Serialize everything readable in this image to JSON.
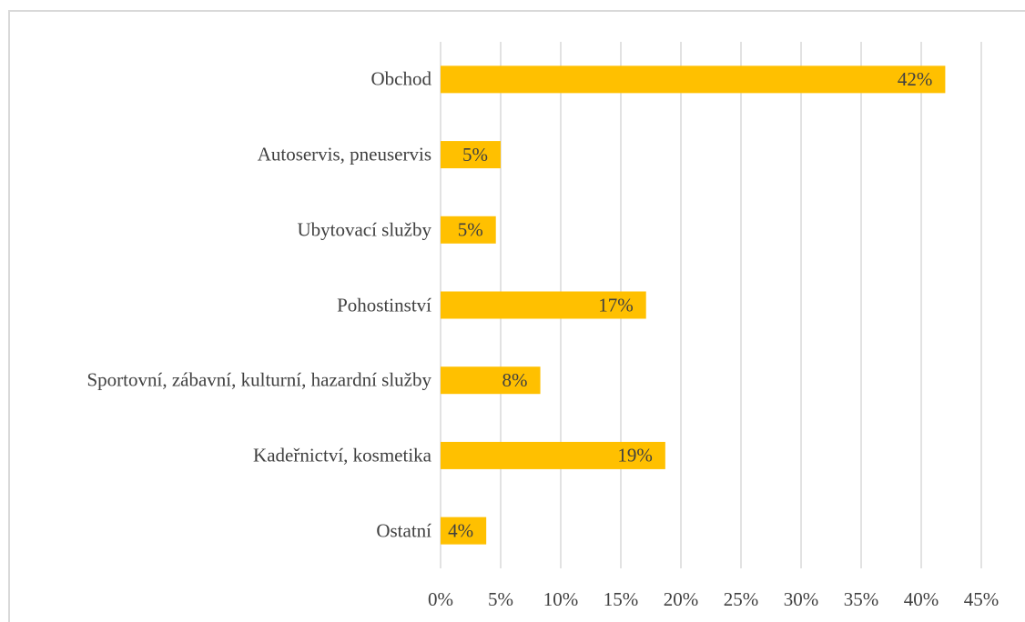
{
  "chart_data": {
    "type": "bar",
    "orientation": "horizontal",
    "categories": [
      "Obchod",
      "Autoservis, pneuservis",
      "Ubytovací služby",
      "Pohostinství",
      "Sportovní, zábavní, kulturní, hazardní služby",
      "Kadeřnictví, kosmetika",
      "Ostatní"
    ],
    "values": [
      42,
      5,
      4.6,
      17.1,
      8.3,
      18.7,
      3.8
    ],
    "value_labels": [
      "42%",
      "5%",
      "5%",
      "17%",
      "8%",
      "19%",
      "4%"
    ],
    "color": "#ffc000",
    "xlim": [
      0,
      45
    ],
    "xticks": [
      {
        "value": 0,
        "label": "0%"
      },
      {
        "value": 5,
        "label": "5%"
      },
      {
        "value": 10,
        "label": "10%"
      },
      {
        "value": 15,
        "label": "15%"
      },
      {
        "value": 20,
        "label": "20%"
      },
      {
        "value": 25,
        "label": "25%"
      },
      {
        "value": 30,
        "label": "30%"
      },
      {
        "value": 35,
        "label": "35%"
      },
      {
        "value": 40,
        "label": "40%"
      },
      {
        "value": 45,
        "label": "45%"
      }
    ],
    "grid": true
  }
}
